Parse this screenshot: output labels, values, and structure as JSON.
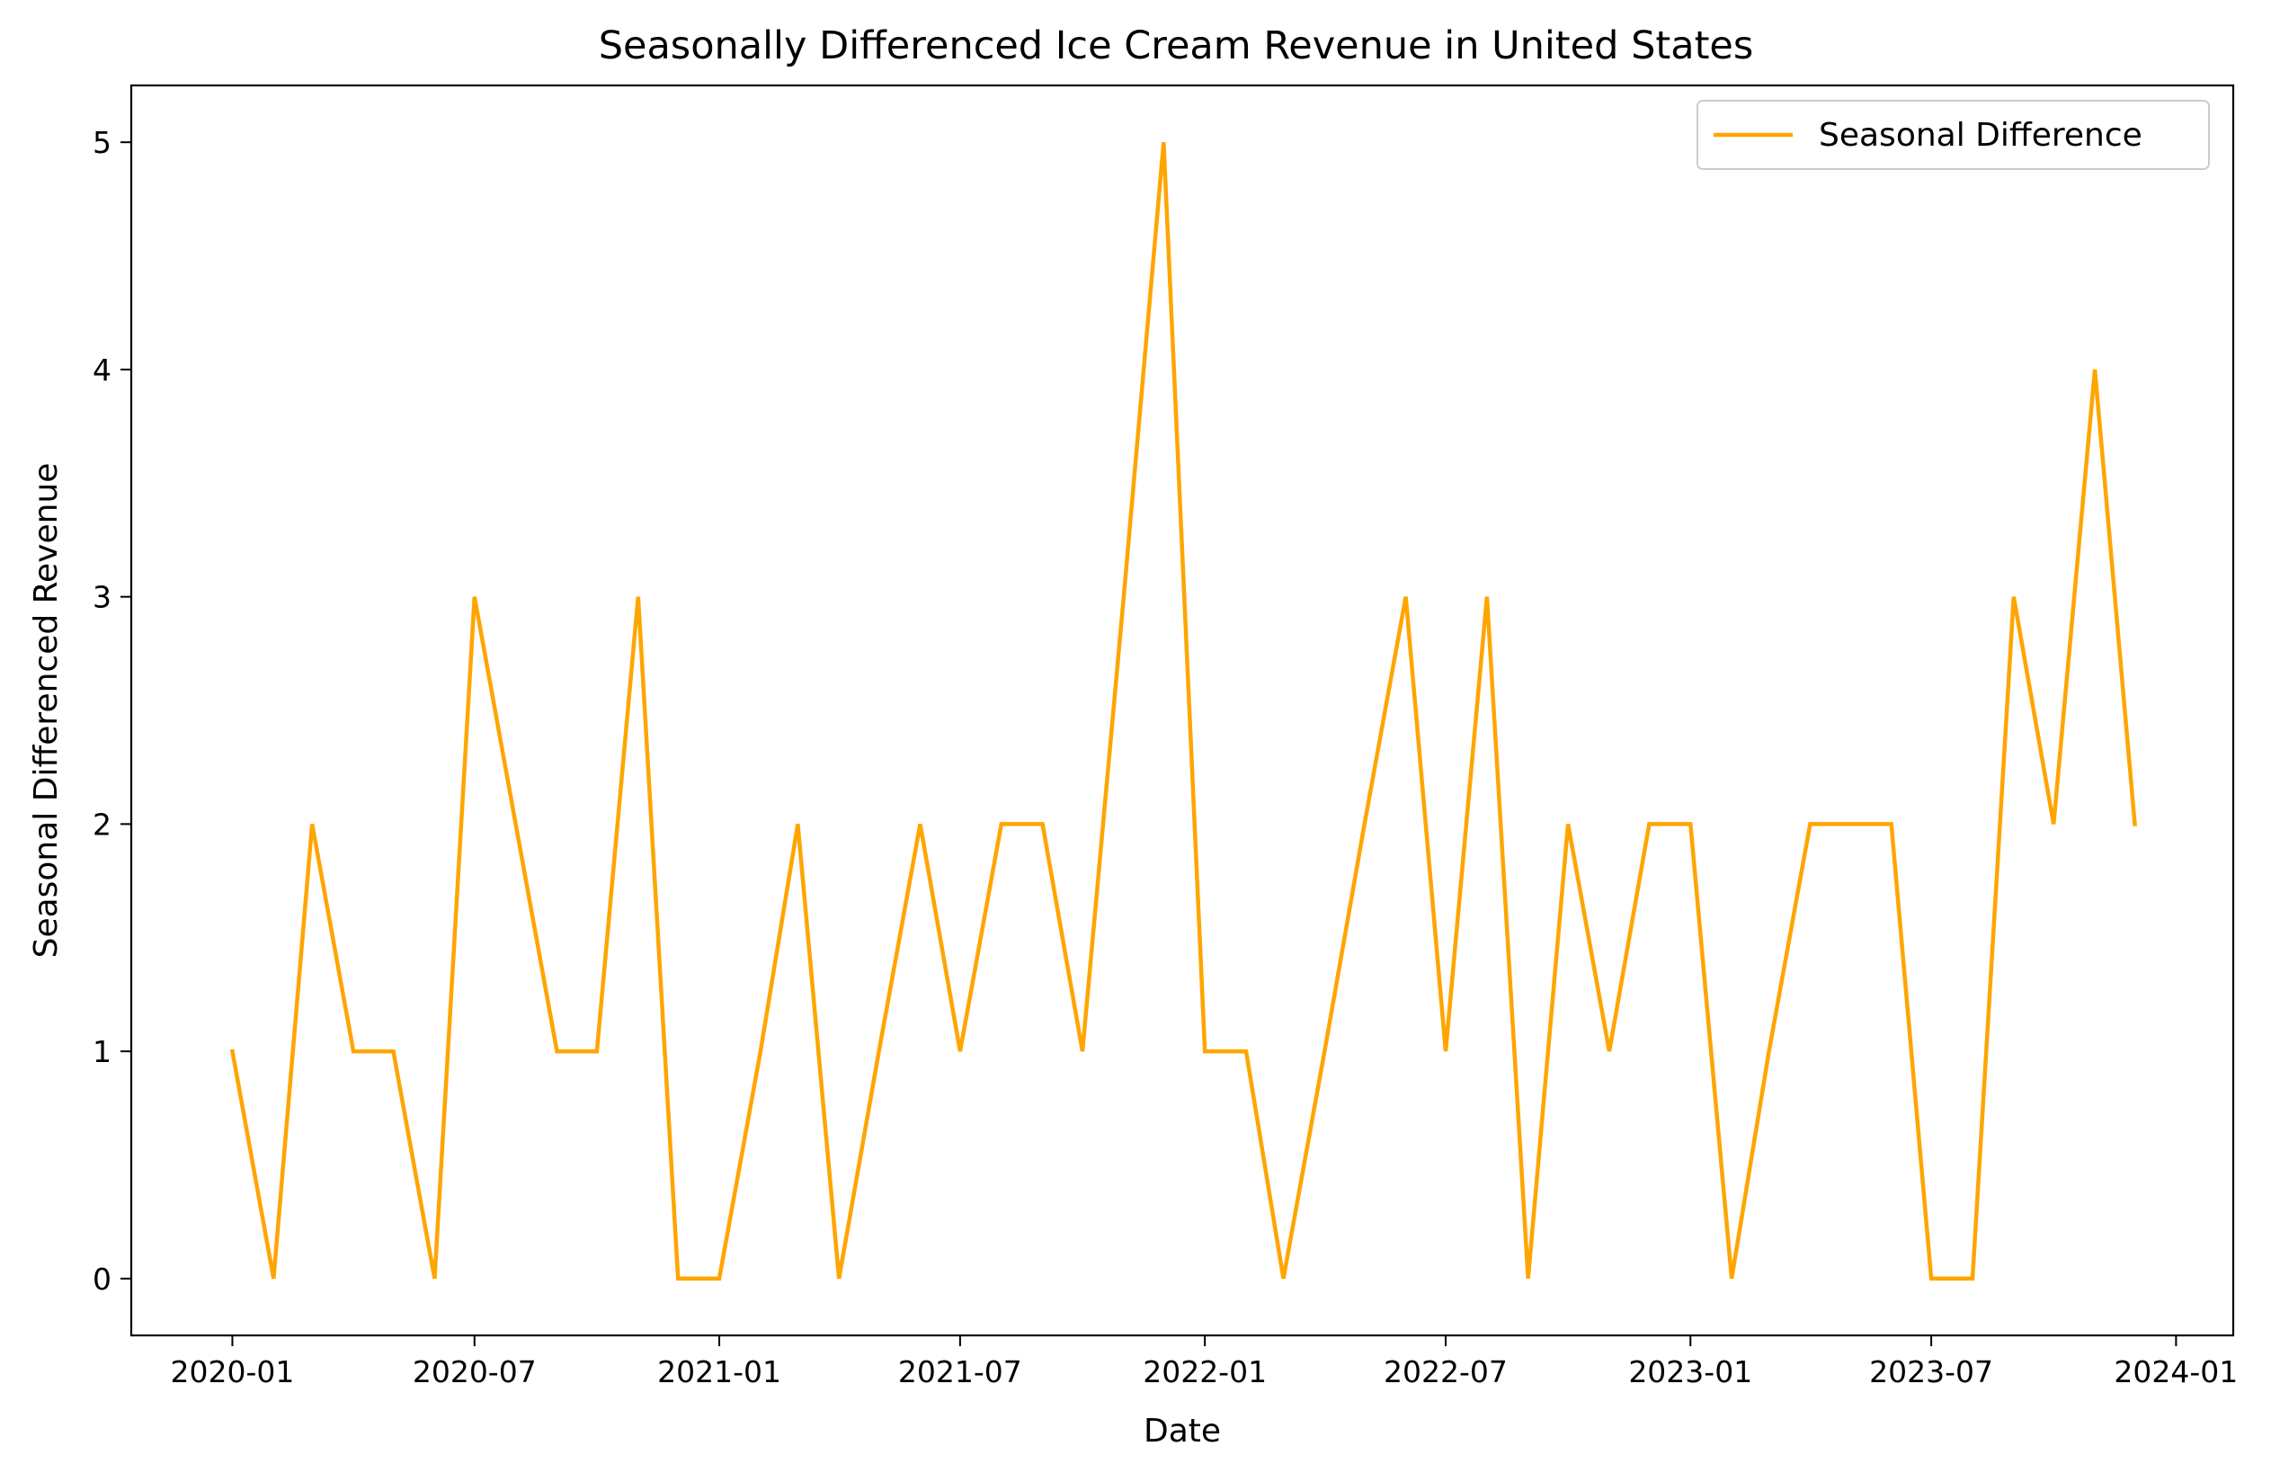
{
  "chart_data": {
    "type": "line",
    "title": "Seasonally Differenced Ice Cream Revenue in United States",
    "xlabel": "Date",
    "ylabel": "Seasonal Differenced Revenue",
    "x_axis_type": "date",
    "xlim": [
      "2019-10-17",
      "2024-02-13"
    ],
    "ylim": [
      -0.25,
      5.25
    ],
    "x_ticks": [
      "2020-01",
      "2020-07",
      "2021-01",
      "2021-07",
      "2022-01",
      "2022-07",
      "2023-01",
      "2023-07",
      "2024-01"
    ],
    "y_ticks": [
      0,
      1,
      2,
      3,
      4,
      5
    ],
    "grid": false,
    "legend": {
      "position": "top-right",
      "entries": [
        "Seasonal Difference"
      ]
    },
    "series": [
      {
        "name": "Seasonal Difference",
        "color": "#FFA500",
        "x": [
          "2020-01-01",
          "2020-02-01",
          "2020-03-01",
          "2020-04-01",
          "2020-05-01",
          "2020-06-01",
          "2020-07-01",
          "2020-08-01",
          "2020-09-01",
          "2020-10-01",
          "2020-11-01",
          "2020-12-01",
          "2021-01-01",
          "2021-02-01",
          "2021-03-01",
          "2021-04-01",
          "2021-05-01",
          "2021-06-01",
          "2021-07-01",
          "2021-08-01",
          "2021-09-01",
          "2021-10-01",
          "2021-11-01",
          "2021-12-01",
          "2022-01-01",
          "2022-02-01",
          "2022-03-01",
          "2022-04-01",
          "2022-05-01",
          "2022-06-01",
          "2022-07-01",
          "2022-08-01",
          "2022-09-01",
          "2022-10-01",
          "2022-11-01",
          "2022-12-01",
          "2023-01-01",
          "2023-02-01",
          "2023-03-01",
          "2023-04-01",
          "2023-05-01",
          "2023-06-01",
          "2023-07-01",
          "2023-08-01",
          "2023-09-01",
          "2023-10-01",
          "2023-11-01",
          "2023-12-01"
        ],
        "values": [
          1,
          0,
          2,
          1,
          1,
          0,
          3,
          2,
          1,
          1,
          3,
          0,
          0,
          1,
          2,
          0,
          1,
          2,
          1,
          2,
          2,
          1,
          3,
          5,
          1,
          1,
          0,
          1,
          2,
          3,
          1,
          3,
          0,
          2,
          1,
          2,
          2,
          0,
          1,
          2,
          2,
          2,
          0,
          0,
          3,
          2,
          4,
          2
        ]
      }
    ]
  }
}
